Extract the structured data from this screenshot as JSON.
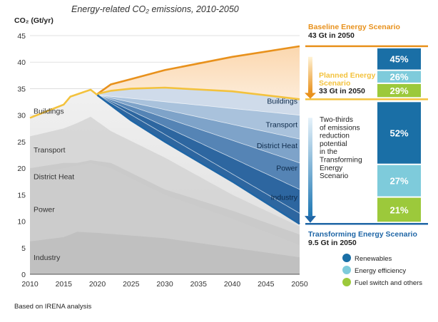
{
  "chart_data": {
    "type": "area",
    "title": "Energy-related CO₂ emissions, 2010-2050",
    "ylabel": "CO₂ (Gt/yr)",
    "xlabel": "",
    "xlim": [
      2010,
      2050
    ],
    "ylim": [
      0,
      45
    ],
    "x_ticks": [
      "2010",
      "2015",
      "2020",
      "2025",
      "2030",
      "2035",
      "2040",
      "2045",
      "2050"
    ],
    "y_ticks": [
      "0",
      "5",
      "10",
      "15",
      "20",
      "25",
      "30",
      "35",
      "40",
      "45"
    ],
    "grid": true,
    "historical_sector_labels": [
      "Buildings",
      "Transport",
      "District Heat",
      "Power",
      "Industry"
    ],
    "historical_total": [
      [
        2010,
        29.5
      ],
      [
        2015,
        32
      ],
      [
        2016,
        33.5
      ],
      [
        2019,
        34.8
      ],
      [
        2020,
        33.8
      ]
    ],
    "historical_layers_upper": {
      "Industry": [
        [
          2010,
          6.2
        ],
        [
          2015,
          7
        ],
        [
          2017,
          8
        ],
        [
          2020,
          7.8
        ],
        [
          2030,
          6.8
        ],
        [
          2040,
          5
        ],
        [
          2050,
          3.2
        ]
      ],
      "Power": [
        [
          2010,
          19
        ],
        [
          2015,
          20
        ],
        [
          2017,
          20.5
        ],
        [
          2019,
          21
        ],
        [
          2022,
          20
        ],
        [
          2030,
          15
        ],
        [
          2040,
          10.5
        ],
        [
          2050,
          5.5
        ]
      ],
      "District Heat": [
        [
          2010,
          20
        ],
        [
          2015,
          21
        ],
        [
          2017,
          21
        ],
        [
          2019,
          21.5
        ],
        [
          2022,
          21
        ],
        [
          2030,
          16
        ],
        [
          2040,
          12
        ],
        [
          2050,
          7.5
        ]
      ],
      "Transport": [
        [
          2010,
          26
        ],
        [
          2015,
          27.5
        ],
        [
          2017,
          28.5
        ],
        [
          2019,
          29.7
        ],
        [
          2022,
          27
        ],
        [
          2030,
          22
        ],
        [
          2040,
          15
        ],
        [
          2050,
          9
        ]
      ]
    },
    "scenarios": [
      {
        "name": "Baseline Energy Scenario",
        "value_2050": "43 Gt in 2050",
        "series": [
          [
            2020,
            34
          ],
          [
            2022,
            35.8
          ],
          [
            2025,
            36.8
          ],
          [
            2030,
            38.5
          ],
          [
            2040,
            41
          ],
          [
            2050,
            43
          ]
        ]
      },
      {
        "name": "Planned Energy Scenario",
        "value_2050": "33 Gt in 2050",
        "series": [
          [
            2020,
            34
          ],
          [
            2022,
            34.6
          ],
          [
            2025,
            35
          ],
          [
            2030,
            35.2
          ],
          [
            2040,
            34.5
          ],
          [
            2050,
            33
          ]
        ]
      },
      {
        "name": "Transforming Energy Scenario",
        "value_2050": "9.5 Gt in 2050",
        "series": [
          [
            2020,
            33.8
          ],
          [
            2025,
            29
          ],
          [
            2030,
            25
          ],
          [
            2040,
            17.5
          ],
          [
            2050,
            9.5
          ]
        ]
      }
    ],
    "reduction_wedges": {
      "labels": [
        "Buildings",
        "Transport",
        "District Heat",
        "Power",
        "Industry"
      ],
      "values_2050": [
        30,
        25.5,
        21,
        16,
        11.5
      ],
      "colors": [
        "#cfdbea",
        "#a9c2dc",
        "#7ea3c9",
        "#5584b5",
        "#2d66a0"
      ]
    },
    "annotation": "Two-thirds of emissions reduction potential in the Transforming Energy Scenario",
    "baseline_to_planned_breakdown": [
      {
        "label": "45%",
        "category": "Renewables"
      },
      {
        "label": "26%",
        "category": "Energy efficiency"
      },
      {
        "label": "29%",
        "category": "Fuel switch and others"
      }
    ],
    "planned_to_transforming_breakdown": [
      {
        "label": "52%",
        "category": "Renewables"
      },
      {
        "label": "27%",
        "category": "Energy efficiency"
      },
      {
        "label": "21%",
        "category": "Fuel switch and others"
      }
    ],
    "legend": [
      {
        "name": "Renewables",
        "color": "#1a6fa6"
      },
      {
        "name": "Energy efficiency",
        "color": "#7ecbdb"
      },
      {
        "name": "Fuel switch and others",
        "color": "#9cc93b"
      }
    ],
    "source_note": "Based on IRENA analysis",
    "colors": {
      "baseline": "#e8911c",
      "planned": "#f3c23d",
      "transforming": "#1f66a6",
      "orange_band": "#fbe0c1",
      "history_fill": "#e3e3e3"
    }
  }
}
